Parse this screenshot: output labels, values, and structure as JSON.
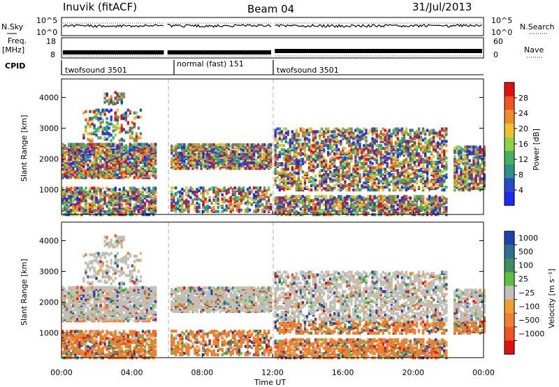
{
  "header": {
    "station": "Inuvik (fitACF)",
    "beam": "Beam 04",
    "date": "31/Jul/2013"
  },
  "left_labels": {
    "nsky": "N.Sky",
    "freq": "Freq.",
    "freq_unit": "[MHz]",
    "cpid": "CPID"
  },
  "right_labels": {
    "nsearch": "N.Search",
    "nave": "Nave"
  },
  "cpid_segments": [
    {
      "label": "twofsound 3501",
      "start_hour": 0.0,
      "end_hour": 5.9
    },
    {
      "label": "normal (fast) 151",
      "start_hour": 5.95,
      "end_hour": 12.0
    },
    {
      "label": "twofsound 3501",
      "start_hour": 12.05,
      "end_hour": 24.0
    }
  ],
  "chart_data": [
    {
      "type": "line",
      "name": "noise",
      "y_ticks_left": [
        "10^5",
        "10^0"
      ],
      "y_ticks_right": [
        "10^5",
        "10^0"
      ]
    },
    {
      "type": "line",
      "name": "frequency",
      "y_ticks_left": [
        "18",
        "8"
      ],
      "y_ticks_right": [
        "60",
        "0"
      ]
    },
    {
      "type": "heatmap",
      "name": "power",
      "ylabel": "Slant Range [km]",
      "y_ticks": [
        "1000",
        "2000",
        "3000",
        "4000"
      ],
      "ylim": [
        200,
        4600
      ],
      "xlim": [
        0,
        24
      ],
      "colorbar": {
        "label": "Power [dB]",
        "ticks": [
          "4",
          "8",
          "12",
          "16",
          "20",
          "24",
          "28"
        ],
        "colors": [
          "#1a2cf0",
          "#2b4cc8",
          "#2f8f8a",
          "#48b060",
          "#8fd24a",
          "#f0c030",
          "#f08c30",
          "#ee5520",
          "#e01010"
        ]
      }
    },
    {
      "type": "heatmap",
      "name": "velocity",
      "ylabel": "Slant Range [km]",
      "xlabel": "Time UT",
      "y_ticks": [
        "1000",
        "2000",
        "3000",
        "4000"
      ],
      "ylim": [
        200,
        4600
      ],
      "xlim": [
        0,
        24
      ],
      "x_ticks": [
        "00:00",
        "04:00",
        "08:00",
        "12:00",
        "16:00",
        "20:00",
        "00:00"
      ],
      "colorbar": {
        "label": "Velocity [m s⁻¹]",
        "ticks": [
          "1000",
          "500",
          "100",
          "25",
          "−25",
          "−100",
          "−500",
          "−1000"
        ],
        "colors": [
          "#2040b0",
          "#2f6f90",
          "#3f9060",
          "#5cc040",
          "#c0c0b8",
          "#f0a030",
          "#f08030",
          "#ee5520",
          "#e01010"
        ]
      }
    }
  ]
}
